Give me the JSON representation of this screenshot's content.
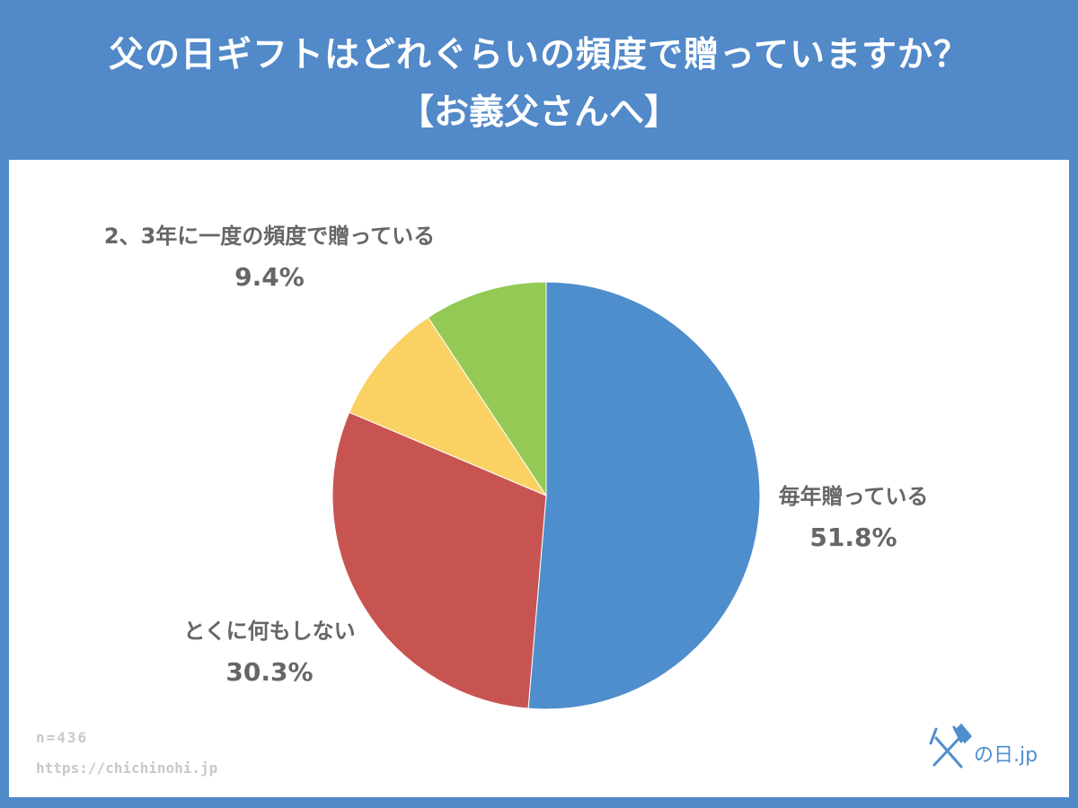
{
  "header": {
    "title_line1": "父の日ギフトはどれぐらいの頻度で贈っていますか？",
    "title_line2": "【お義父さんへ】"
  },
  "chart_data": {
    "type": "pie",
    "title": "父の日ギフトはどれぐらいの頻度で贈っていますか？【お義父さんへ】",
    "start_angle_deg": 0,
    "direction": "clockwise",
    "slices": [
      {
        "label": "毎年贈っている",
        "value": 51.8,
        "value_label": "51.8%",
        "color": "#4f8ecd"
      },
      {
        "label": "とくに何もしない",
        "value": 30.3,
        "value_label": "30.3%",
        "color": "#c85452"
      },
      {
        "label": "",
        "value": 9.4,
        "value_label": "",
        "color": "#fad263"
      },
      {
        "label": "2、3年に一度の頻度で贈っている",
        "value": 9.4,
        "value_label": "9.4%",
        "color": "#93c954"
      }
    ]
  },
  "footer": {
    "sample_size": "n=436",
    "url": "https://chichinohi.jp"
  },
  "logo": {
    "text": "父の日.jp",
    "color": "#4f8ecd"
  }
}
